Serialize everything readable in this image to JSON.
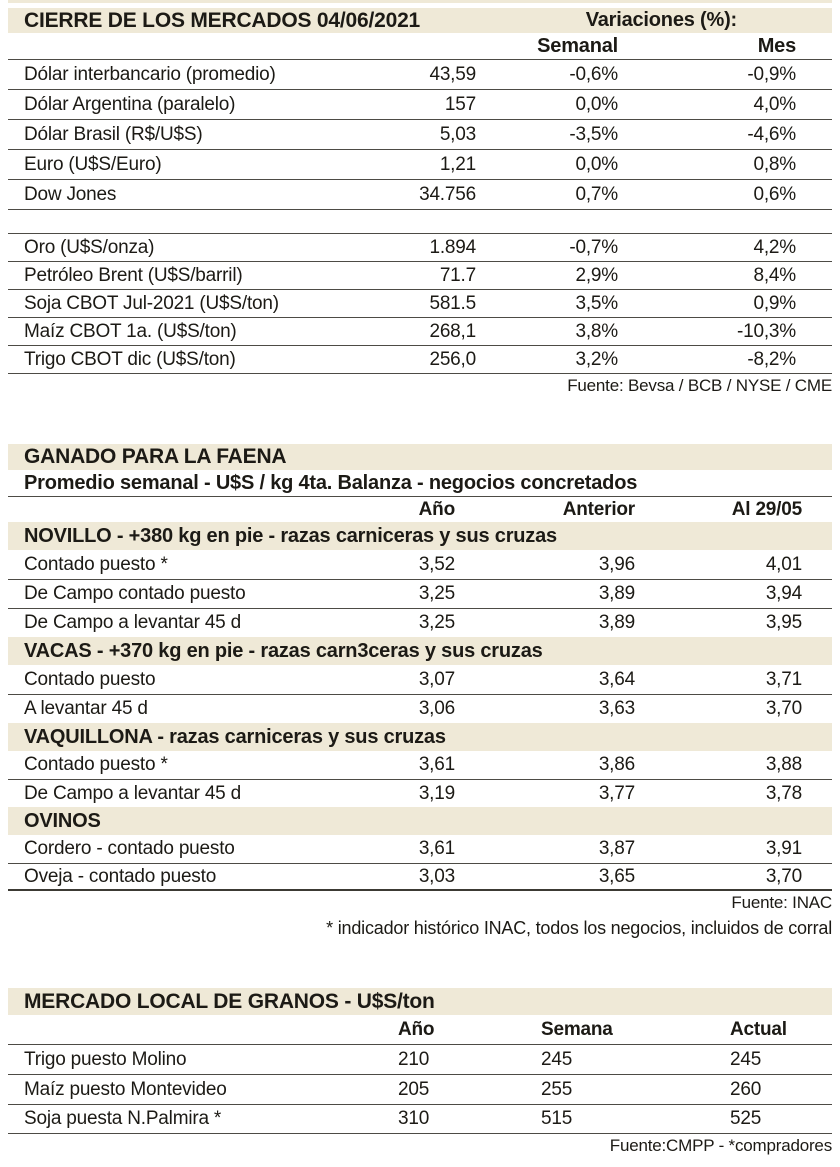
{
  "colors": {
    "band_bg": "#efe9d7",
    "text": "#1c1a15",
    "rule": "#4d4b45"
  },
  "section1": {
    "title": "CIERRE DE LOS MERCADOS 04/06/2021",
    "variaciones_label": "Variaciones (%):",
    "col_headers": [
      "Semanal",
      "Mes"
    ],
    "rows_group1": [
      {
        "label": "Dólar interbancario (promedio)",
        "value": "43,59",
        "semanal": "-0,6%",
        "mes": "-0,9%"
      },
      {
        "label": "Dólar Argentina (paralelo)",
        "value": "157",
        "semanal": "0,0%",
        "mes": "4,0%"
      },
      {
        "label": "Dólar Brasil (R$/U$S)",
        "value": "5,03",
        "semanal": "-3,5%",
        "mes": "-4,6%"
      },
      {
        "label": "Euro (U$S/Euro)",
        "value": "1,21",
        "semanal": "0,0%",
        "mes": "0,8%"
      },
      {
        "label": "Dow Jones",
        "value": "34.756",
        "semanal": "0,7%",
        "mes": "0,6%"
      }
    ],
    "rows_group2": [
      {
        "label": "Oro (U$S/onza)",
        "value": "1.894",
        "semanal": "-0,7%",
        "mes": "4,2%"
      },
      {
        "label": "Petróleo Brent (U$S/barril)",
        "value": "71.7",
        "semanal": "2,9%",
        "mes": "8,4%"
      },
      {
        "label": "Soja CBOT Jul-2021 (U$S/ton)",
        "value": "581.5",
        "semanal": "3,5%",
        "mes": "0,9%"
      },
      {
        "label": "Maíz CBOT 1a. (U$S/ton)",
        "value": "268,1",
        "semanal": "3,8%",
        "mes": "-10,3%"
      },
      {
        "label": "Trigo CBOT dic (U$S/ton)",
        "value": "256,0",
        "semanal": "3,2%",
        "mes": "-8,2%"
      }
    ],
    "source": "Fuente: Bevsa / BCB / NYSE / CME"
  },
  "section2": {
    "title": "GANADO PARA LA FAENA",
    "subtitle": "Promedio semanal - U$S / kg 4ta. Balanza - negocios concretados",
    "col_headers": [
      "Año",
      "Anterior",
      "Al 29/05"
    ],
    "groups": [
      {
        "header": "NOVILLO - +380 kg en pie - razas carniceras y sus cruzas",
        "rows": [
          {
            "label": "Contado puesto *",
            "ano": "3,52",
            "anterior": "3,96",
            "al": "4,01"
          },
          {
            "label": "De Campo contado puesto",
            "ano": "3,25",
            "anterior": "3,89",
            "al": "3,94"
          },
          {
            "label": "De Campo a levantar 45 d",
            "ano": "3,25",
            "anterior": "3,89",
            "al": "3,95"
          }
        ]
      },
      {
        "header": "VACAS - +370 kg en pie - razas carn3ceras y sus cruzas",
        "rows": [
          {
            "label": "Contado puesto",
            "ano": "3,07",
            "anterior": "3,64",
            "al": "3,71"
          },
          {
            "label": "A levantar 45 d",
            "ano": "3,06",
            "anterior": "3,63",
            "al": "3,70"
          }
        ]
      },
      {
        "header": "VAQUILLONA - razas carniceras y sus cruzas",
        "rows": [
          {
            "label": "Contado puesto *",
            "ano": "3,61",
            "anterior": "3,86",
            "al": "3,88"
          },
          {
            "label": "De Campo a levantar 45 d",
            "ano": "3,19",
            "anterior": "3,77",
            "al": "3,78"
          }
        ]
      },
      {
        "header": "OVINOS",
        "rows": [
          {
            "label": "Cordero - contado puesto",
            "ano": "3,61",
            "anterior": "3,87",
            "al": "3,91"
          },
          {
            "label": "Oveja - contado puesto",
            "ano": "3,03",
            "anterior": "3,65",
            "al": "3,70"
          }
        ]
      }
    ],
    "source": "Fuente: INAC",
    "note": "* indicador histórico INAC, todos los negocios, incluidos de corral"
  },
  "section3": {
    "title": "MERCADO LOCAL DE GRANOS - U$S/ton",
    "col_headers": [
      "Año",
      "Semana",
      "Actual"
    ],
    "rows": [
      {
        "label": "Trigo puesto Molino",
        "ano": "210",
        "semana": "245",
        "actual": "245"
      },
      {
        "label": "Maíz puesto Montevideo",
        "ano": "205",
        "semana": "255",
        "actual": "260"
      },
      {
        "label": "Soja puesta N.Palmira *",
        "ano": "310",
        "semana": "515",
        "actual": "525"
      }
    ],
    "source": "Fuente:CMPP - *compradores"
  }
}
